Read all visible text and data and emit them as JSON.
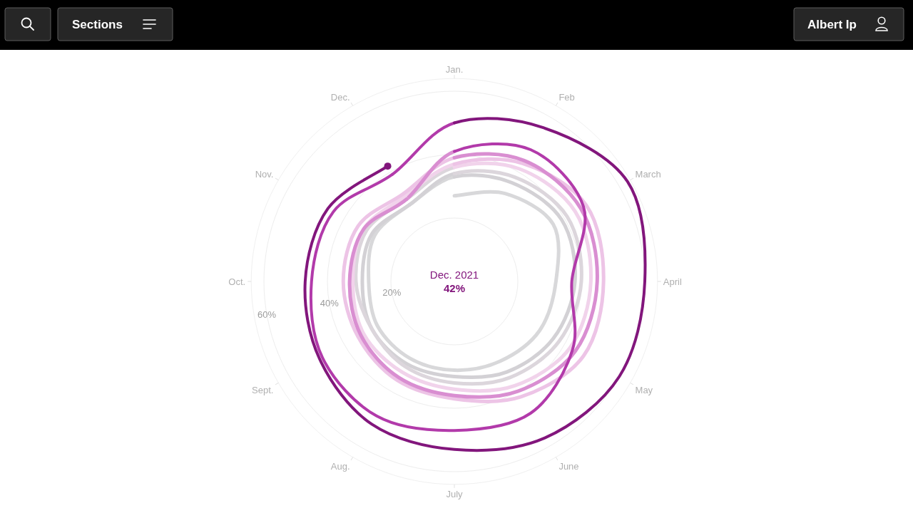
{
  "chart_data": {
    "type": "radar",
    "categories": [
      "Jan.",
      "Feb",
      "March",
      "April",
      "May",
      "June",
      "July",
      "Aug.",
      "Sept.",
      "Oct.",
      "Nov.",
      "Dec."
    ],
    "series": [
      {
        "color": "#d8d8da",
        "values": [
          27,
          32,
          36,
          32,
          31,
          29,
          28,
          28,
          28,
          27,
          29,
          28
        ]
      },
      {
        "color": "#d3d1d5",
        "values": [
          33,
          36,
          39,
          38,
          36,
          33,
          30,
          30,
          30,
          29,
          30,
          28
        ]
      },
      {
        "color": "#dcd6dc",
        "values": [
          34,
          38,
          41,
          40,
          38,
          35,
          32,
          31,
          30,
          31,
          32,
          30
        ]
      },
      {
        "color": "#f1d3eb",
        "values": [
          36,
          41,
          44,
          43,
          42,
          38,
          34,
          33,
          33,
          32,
          33,
          31
        ]
      },
      {
        "color": "#edc4e6",
        "values": [
          37,
          43,
          48,
          47,
          47,
          42,
          37,
          36,
          35,
          35,
          35,
          32
        ]
      },
      {
        "color": "#d98ed1",
        "values": [
          39,
          44,
          46,
          45,
          44,
          40,
          36,
          35,
          34,
          33,
          33,
          30
        ]
      },
      {
        "color": "#b23aaa",
        "values": [
          41,
          48,
          47,
          37,
          43,
          48,
          47,
          49,
          48,
          45,
          44,
          39
        ]
      },
      {
        "color": "#82167c",
        "values": [
          50,
          56,
          63,
          60,
          60,
          57,
          53,
          52,
          49,
          47,
          46,
          42
        ]
      }
    ],
    "ylim": [
      0,
      64
    ],
    "yticks": [
      {
        "value": 20,
        "label": "20%"
      },
      {
        "value": 40,
        "label": "40%"
      },
      {
        "value": 60,
        "label": "60%"
      }
    ],
    "grid": true,
    "annotations": [
      "Dec. 2021",
      "42%",
      "Sections",
      "Albert Ip"
    ]
  }
}
